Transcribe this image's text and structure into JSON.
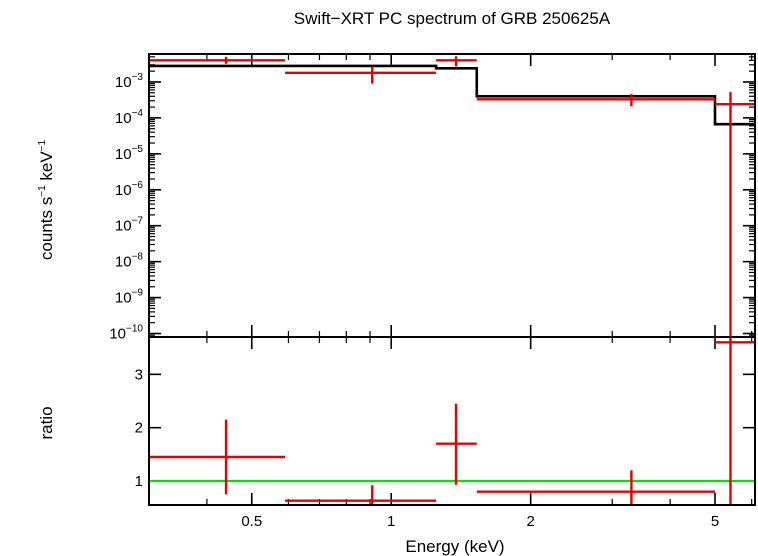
{
  "chart_data": {
    "type": "spectrum",
    "title": "Swift−XRT PC spectrum of GRB 250625A",
    "xlabel": "Energy (keV)",
    "xscale": "log",
    "xlim": [
      0.3,
      6.1
    ],
    "x_ticks": [
      {
        "value": 0.5,
        "label": "0.5"
      },
      {
        "value": 1,
        "label": "1"
      },
      {
        "value": 2,
        "label": "2"
      },
      {
        "value": 5,
        "label": "5"
      }
    ],
    "panels": [
      {
        "name": "spectrum",
        "ylabel_parts": [
          "counts s",
          "−1",
          " keV",
          "−1"
        ],
        "yscale": "log",
        "ylim": [
          8e-11,
          0.006
        ],
        "y_ticks": [
          {
            "value": 0.001,
            "base": "10",
            "exp": "−3"
          },
          {
            "value": 0.0001,
            "base": "10",
            "exp": "−4"
          },
          {
            "value": 1e-05,
            "base": "10",
            "exp": "−5"
          },
          {
            "value": 1e-06,
            "base": "10",
            "exp": "−6"
          },
          {
            "value": 1e-07,
            "base": "10",
            "exp": "−7"
          },
          {
            "value": 1e-08,
            "base": "10",
            "exp": "−8"
          },
          {
            "value": 1e-09,
            "base": "10",
            "exp": "−9"
          },
          {
            "value": 1e-10,
            "base": "10",
            "exp": "−10"
          }
        ],
        "data": [
          {
            "x": 0.44,
            "xlo": 0.3,
            "xhi": 0.59,
            "y": 0.004,
            "ylo": 0.0032,
            "yhi": 0.005
          },
          {
            "x": 0.91,
            "xlo": 0.59,
            "xhi": 1.25,
            "y": 0.0018,
            "ylo": 0.0009,
            "yhi": 0.0027
          },
          {
            "x": 1.38,
            "xlo": 1.25,
            "xhi": 1.53,
            "y": 0.004,
            "ylo": 0.0027,
            "yhi": 0.0052
          },
          {
            "x": 3.3,
            "xlo": 1.53,
            "xhi": 5.0,
            "y": 0.00033,
            "ylo": 0.00021,
            "yhi": 0.00046
          },
          {
            "x": 5.4,
            "xlo": 5.0,
            "xhi": 6.1,
            "y": 0.00024,
            "ylo": 8e-11,
            "yhi": 0.00052
          }
        ],
        "model_steps": [
          {
            "xlo": 0.3,
            "xhi": 1.25,
            "y": 0.0028
          },
          {
            "xlo": 1.25,
            "xhi": 1.53,
            "y": 0.0024
          },
          {
            "xlo": 1.53,
            "xhi": 5.0,
            "y": 0.0004
          },
          {
            "xlo": 5.0,
            "xhi": 6.1,
            "y": 6.7e-05
          }
        ]
      },
      {
        "name": "ratio",
        "ylabel": "ratio",
        "yscale": "linear",
        "ylim": [
          0.55,
          3.7
        ],
        "y_ticks": [
          {
            "value": 1,
            "label": "1"
          },
          {
            "value": 2,
            "label": "2"
          },
          {
            "value": 3,
            "label": "3"
          }
        ],
        "reference_line": 1,
        "data": [
          {
            "x": 0.44,
            "xlo": 0.3,
            "xhi": 0.59,
            "y": 1.45,
            "ylo": 0.75,
            "yhi": 2.15
          },
          {
            "x": 0.91,
            "xlo": 0.59,
            "xhi": 1.25,
            "y": 0.63,
            "ylo": 0.55,
            "yhi": 0.92
          },
          {
            "x": 1.38,
            "xlo": 1.25,
            "xhi": 1.53,
            "y": 1.7,
            "ylo": 0.93,
            "yhi": 2.45
          },
          {
            "x": 3.3,
            "xlo": 1.53,
            "xhi": 5.0,
            "y": 0.8,
            "ylo": 0.55,
            "yhi": 1.2
          },
          {
            "x": 5.4,
            "xlo": 5.0,
            "xhi": 6.1,
            "y": 3.6,
            "ylo": 0.55,
            "yhi": 3.7
          }
        ]
      }
    ],
    "colors": {
      "data": "#e60000",
      "model": "#000000",
      "reference": "#00e600",
      "frame": "#000000"
    }
  }
}
